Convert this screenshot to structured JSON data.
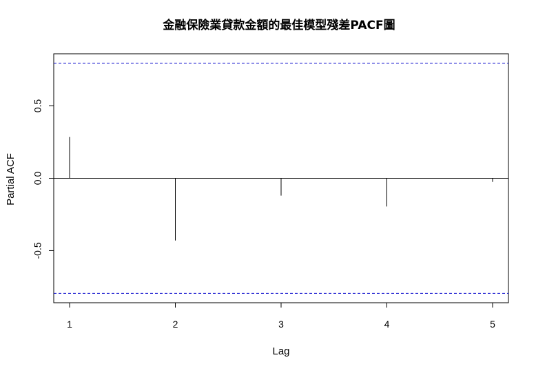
{
  "chart_data": {
    "type": "bar",
    "title": "金融保險業貸款金額的最佳模型殘差PACF圖",
    "xlabel": "Lag",
    "ylabel": "Partial ACF",
    "x": [
      1,
      2,
      3,
      4,
      5
    ],
    "values": [
      0.285,
      -0.43,
      -0.12,
      -0.195,
      -0.025
    ],
    "xlim": [
      0.85,
      5.15
    ],
    "ylim": [
      -0.86,
      0.86
    ],
    "xticks": [
      1,
      2,
      3,
      4,
      5
    ],
    "xtick_labels": [
      "1",
      "2",
      "3",
      "4",
      "5"
    ],
    "yticks": [
      -0.5,
      0.0,
      0.5
    ],
    "ytick_labels": [
      "-0.5",
      "0.0",
      "0.5"
    ],
    "confidence_bounds": [
      0.795,
      -0.795
    ],
    "colors": {
      "bars": "#000000",
      "bounds": "#0000cc",
      "zero_line": "#000000"
    },
    "grid": false
  }
}
